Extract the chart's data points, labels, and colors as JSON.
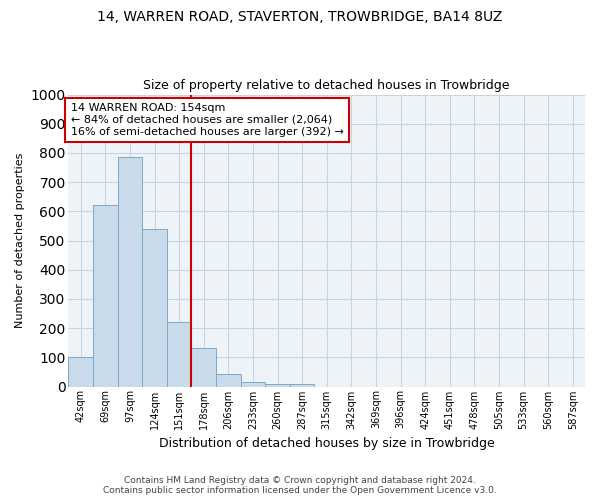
{
  "title": "14, WARREN ROAD, STAVERTON, TROWBRIDGE, BA14 8UZ",
  "subtitle": "Size of property relative to detached houses in Trowbridge",
  "xlabel": "Distribution of detached houses by size in Trowbridge",
  "ylabel": "Number of detached properties",
  "categories": [
    "42sqm",
    "69sqm",
    "97sqm",
    "124sqm",
    "151sqm",
    "178sqm",
    "206sqm",
    "233sqm",
    "260sqm",
    "287sqm",
    "315sqm",
    "342sqm",
    "369sqm",
    "396sqm",
    "424sqm",
    "451sqm",
    "478sqm",
    "505sqm",
    "533sqm",
    "560sqm",
    "587sqm"
  ],
  "values": [
    102,
    623,
    785,
    538,
    220,
    133,
    42,
    15,
    10,
    10,
    0,
    0,
    0,
    0,
    0,
    0,
    0,
    0,
    0,
    0,
    0
  ],
  "bar_color": "#c9daea",
  "bar_edge_color": "#7aaac8",
  "red_line_after_bin": 4,
  "highlight_line_color": "#cc0000",
  "annotation_line1": "14 WARREN ROAD: 154sqm",
  "annotation_line2": "← 84% of detached houses are smaller (2,064)",
  "annotation_line3": "16% of semi-detached houses are larger (392) →",
  "annotation_box_color": "#ffffff",
  "annotation_box_edge_color": "#cc0000",
  "ylim": [
    0,
    1000
  ],
  "yticks": [
    0,
    100,
    200,
    300,
    400,
    500,
    600,
    700,
    800,
    900,
    1000
  ],
  "footer_line1": "Contains HM Land Registry data © Crown copyright and database right 2024.",
  "footer_line2": "Contains public sector information licensed under the Open Government Licence v3.0.",
  "bg_color": "#ffffff",
  "plot_bg_color": "#eef3f8",
  "grid_color": "#c8d4e0",
  "title_fontsize": 10,
  "subtitle_fontsize": 9
}
